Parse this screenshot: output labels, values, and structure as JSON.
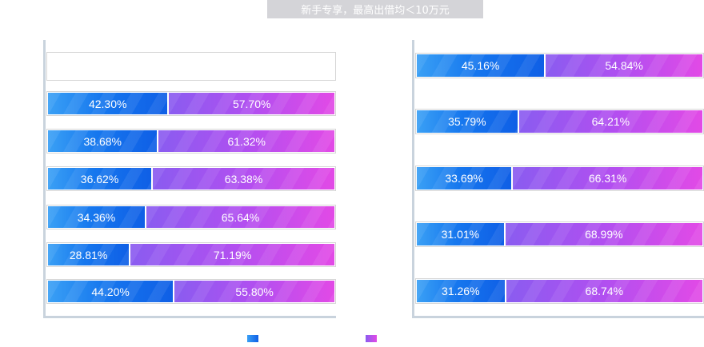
{
  "banner": {
    "text": "新手专享，最高出借均＜10万元"
  },
  "colors": {
    "series_a": "#1677ee",
    "series_b": "#b14ff0"
  },
  "legend": {
    "series_a_label": "",
    "series_b_label": ""
  },
  "chart_data": [
    {
      "type": "bar",
      "stacked": true,
      "orientation": "horizontal",
      "unit": "%",
      "categories": [
        "",
        "",
        "",
        "",
        "",
        "",
        ""
      ],
      "series": [
        {
          "values": [
            null,
            42.3,
            38.68,
            36.62,
            34.36,
            28.81,
            44.2
          ]
        },
        {
          "values": [
            null,
            57.7,
            61.32,
            63.38,
            65.64,
            71.19,
            55.8
          ]
        }
      ],
      "data_labels": [
        [
          "",
          ""
        ],
        [
          "42.30%",
          "57.70%"
        ],
        [
          "38.68%",
          "61.32%"
        ],
        [
          "36.62%",
          "63.38%"
        ],
        [
          "34.36%",
          "65.64%"
        ],
        [
          "28.81%",
          "71.19%"
        ],
        [
          "44.20%",
          "55.80%"
        ]
      ],
      "xlim": [
        0,
        100
      ]
    },
    {
      "type": "bar",
      "stacked": true,
      "orientation": "horizontal",
      "unit": "%",
      "categories": [
        "",
        "",
        "",
        "",
        ""
      ],
      "series": [
        {
          "values": [
            45.16,
            35.79,
            33.69,
            31.01,
            31.26
          ]
        },
        {
          "values": [
            54.84,
            64.21,
            66.31,
            68.99,
            68.74
          ]
        }
      ],
      "data_labels": [
        [
          "45.16%",
          "54.84%"
        ],
        [
          "35.79%",
          "64.21%"
        ],
        [
          "33.69%",
          "66.31%"
        ],
        [
          "31.01%",
          "68.99%"
        ],
        [
          "31.26%",
          "68.74%"
        ]
      ],
      "xlim": [
        0,
        100
      ]
    }
  ]
}
